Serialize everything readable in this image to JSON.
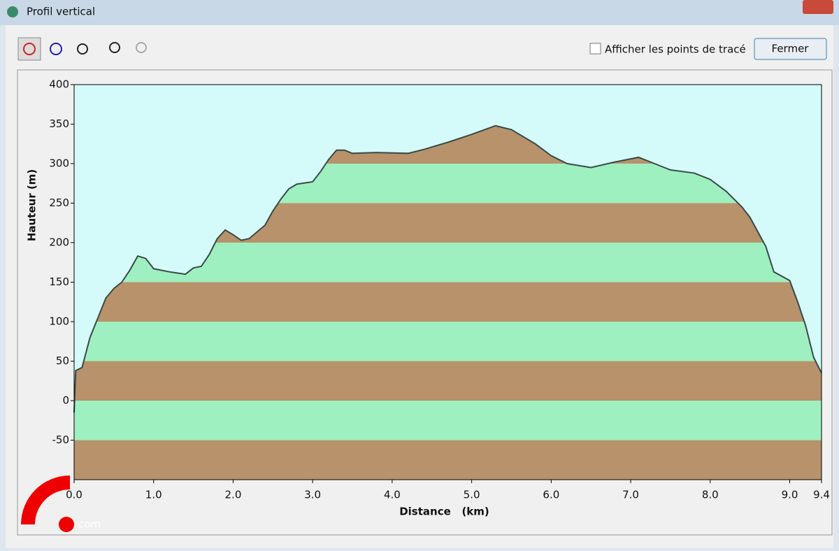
{
  "window": {
    "title": "Profil vertical",
    "checkbox_label": "Afficher les points de tracé",
    "close_button": "Fermer",
    "watermark": "com"
  },
  "chart_data": {
    "type": "area",
    "y_label": "Hauteur (m)",
    "x_label": "Distance   (km)",
    "x": [
      0,
      0.02,
      0.1,
      0.2,
      0.3,
      0.4,
      0.5,
      0.6,
      0.7,
      0.8,
      0.9,
      1.0,
      1.2,
      1.4,
      1.5,
      1.6,
      1.7,
      1.8,
      1.9,
      2.0,
      2.1,
      2.2,
      2.4,
      2.5,
      2.6,
      2.7,
      2.8,
      3.0,
      3.1,
      3.2,
      3.3,
      3.4,
      3.5,
      3.8,
      4.2,
      4.4,
      4.7,
      5.0,
      5.3,
      5.5,
      5.8,
      6.0,
      6.2,
      6.5,
      6.8,
      7.1,
      7.3,
      7.5,
      7.8,
      8.0,
      8.2,
      8.4,
      8.5,
      8.7,
      8.8,
      9.0,
      9.1,
      9.2,
      9.3,
      9.4
    ],
    "values": [
      -15,
      38,
      42,
      80,
      105,
      130,
      142,
      150,
      165,
      183,
      180,
      167,
      163,
      160,
      168,
      170,
      185,
      205,
      216,
      210,
      203,
      205,
      222,
      240,
      255,
      268,
      274,
      277,
      290,
      305,
      317,
      317,
      313,
      314,
      313,
      318,
      327,
      337,
      348,
      343,
      325,
      310,
      300,
      295,
      302,
      308,
      300,
      292,
      288,
      280,
      265,
      245,
      232,
      195,
      163,
      152,
      125,
      95,
      55,
      35
    ],
    "color": "#3a4a48",
    "band_colors": [
      "#b8926a",
      "#9ff0c0"
    ],
    "background": "#d4fafa",
    "xlim": [
      0,
      9.4
    ],
    "xticks": [
      {
        "value": 0,
        "label": "0.0"
      },
      {
        "value": 1,
        "label": "1.0"
      },
      {
        "value": 2,
        "label": "2.0"
      },
      {
        "value": 3,
        "label": "3.0"
      },
      {
        "value": 4,
        "label": "4.0"
      },
      {
        "value": 5,
        "label": "5.0"
      },
      {
        "value": 6,
        "label": "6.0"
      },
      {
        "value": 7,
        "label": "7.0"
      },
      {
        "value": 8,
        "label": "8.0"
      },
      {
        "value": 9,
        "label": "9.0"
      },
      {
        "value": 9.4,
        "label": "9.4"
      }
    ],
    "ylim": [
      -100,
      400
    ],
    "yticks": [
      -50,
      0,
      50,
      100,
      150,
      200,
      250,
      300,
      350,
      400
    ]
  }
}
